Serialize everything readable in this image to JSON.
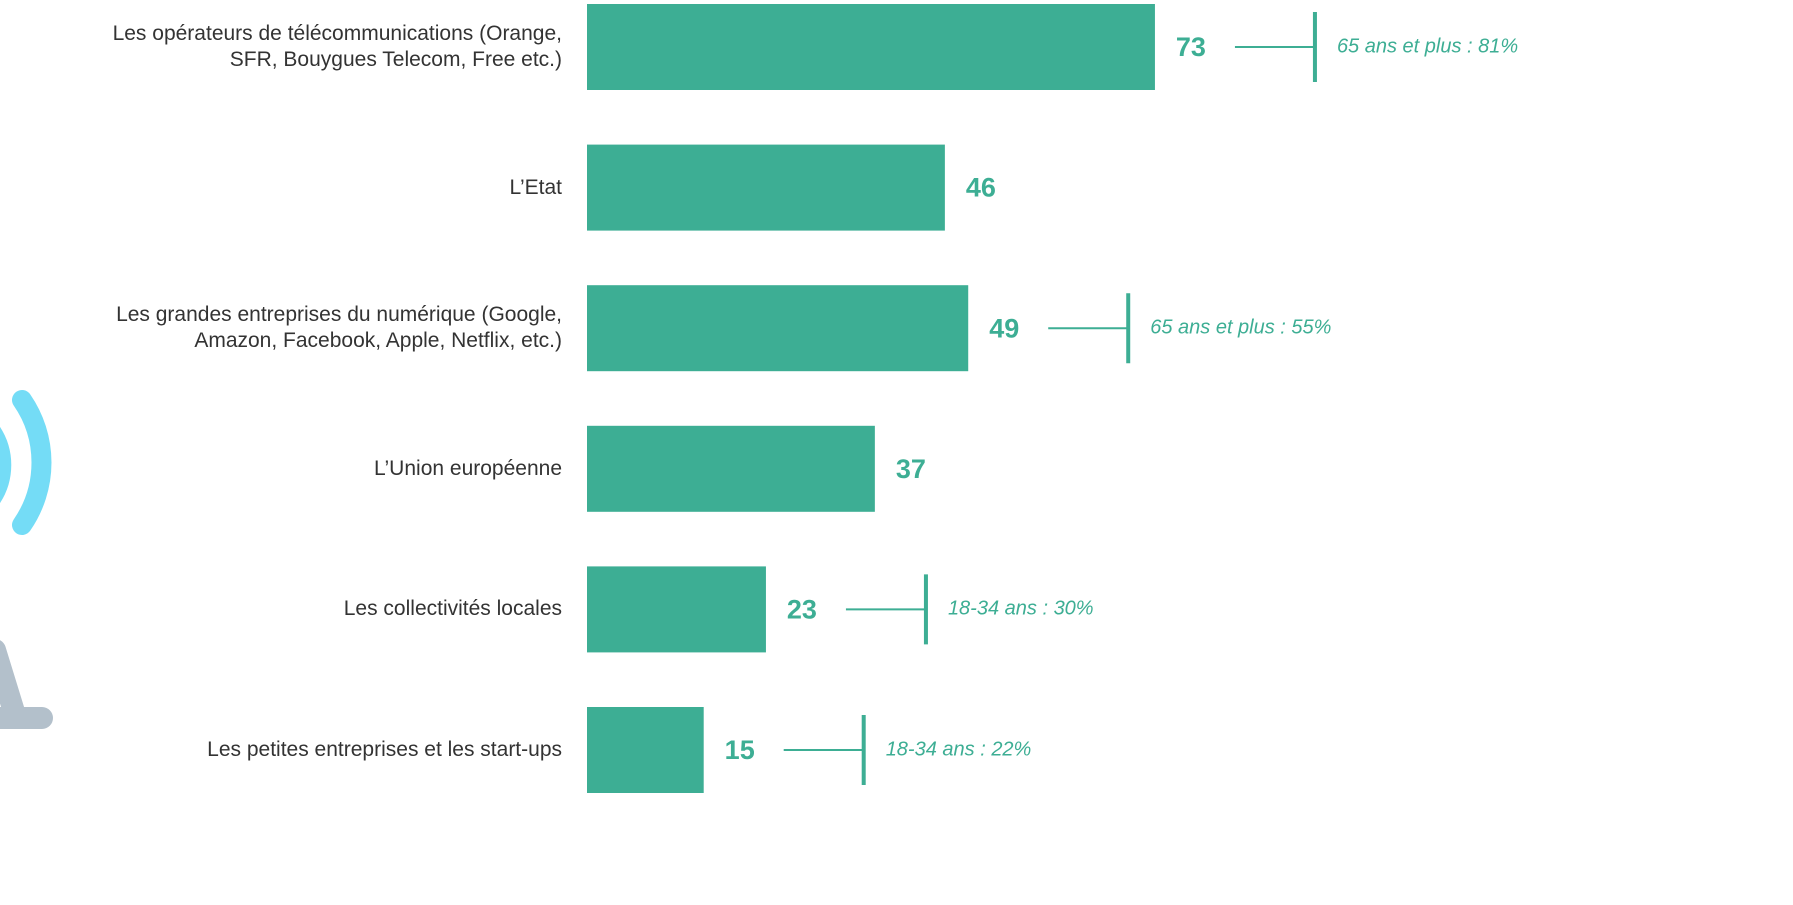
{
  "chart_data": {
    "type": "barh",
    "categories": [
      "Les opérateurs de télécommunications (Orange,\nSFR, Bouygues Telecom, Free etc.)",
      "L’Etat",
      "Les grandes entreprises du numérique (Google,\nAmazon, Facebook, Apple, Netflix, etc.)",
      "L’Union européenne",
      "Les collectivités locales",
      "Les petites entreprises et les start-ups"
    ],
    "values": [
      73,
      46,
      49,
      37,
      23,
      15
    ],
    "annotations": [
      "65 ans et plus : 81%",
      null,
      "65 ans et plus : 55%",
      null,
      "18-34 ans : 30%",
      "18-34 ans : 22%"
    ],
    "color": "#3dae94"
  }
}
